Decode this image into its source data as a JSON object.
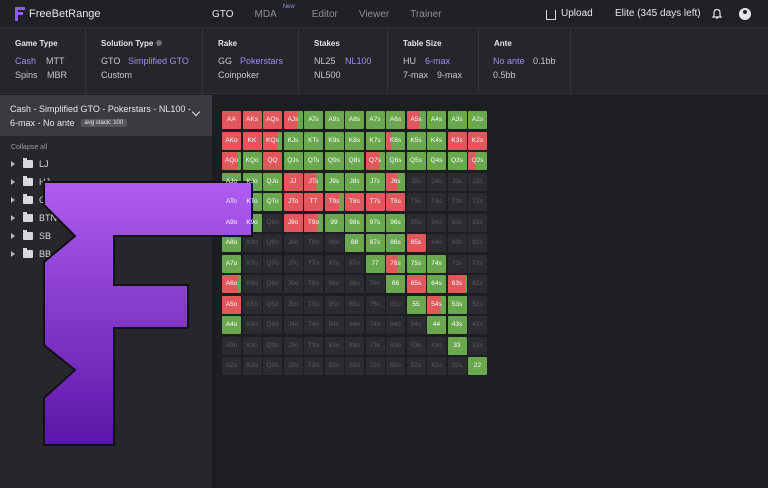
{
  "app": {
    "name": "FreeBetRange"
  },
  "nav": [
    {
      "label": "GTO",
      "active": true
    },
    {
      "label": "MDA",
      "badge": "New"
    },
    {
      "label": "Editor"
    },
    {
      "label": "Viewer"
    },
    {
      "label": "Trainer"
    }
  ],
  "header": {
    "upload_label": "Upload",
    "plan_label": "Elite (345 days left)"
  },
  "filters": {
    "game_type": {
      "label": "Game Type",
      "options": [
        "Cash",
        "MTT",
        "Spins",
        "MBR"
      ],
      "selected": "Cash"
    },
    "solution_type": {
      "label": "Solution Type",
      "options": [
        "GTO",
        "Simplified GTO",
        "Custom"
      ],
      "selected": "Simplified GTO"
    },
    "rake": {
      "label": "Rake",
      "options": [
        "GG",
        "Pokerstars",
        "Coinpoker"
      ],
      "selected": "Pokerstars"
    },
    "stakes": {
      "label": "Stakes",
      "options": [
        "NL25",
        "NL100",
        "NL500"
      ],
      "selected": "NL100"
    },
    "table_size": {
      "label": "Table Size",
      "options": [
        "HU",
        "6-max",
        "7-max",
        "9-max"
      ],
      "selected": "6-max"
    },
    "ante": {
      "label": "Ante",
      "options": [
        "No ante",
        "0.1bb",
        "0.5bb"
      ],
      "selected": "No ante"
    }
  },
  "sidebar": {
    "solution_line1": "Cash - Simplified GTO - Pokerstars - NL100 -",
    "solution_line2": "6-max - No ante",
    "stack_badge": "avg stack: 100",
    "collapse_label": "Collapse all",
    "positions": [
      "LJ",
      "HJ",
      "CO",
      "BTN",
      "SB",
      "BB"
    ]
  },
  "colors": {
    "raise": "#e2575c",
    "call": "#6aa84f",
    "fold": "#2b2c30",
    "accent": "#8b5cf6"
  },
  "range_grid": {
    "ranks": [
      "A",
      "K",
      "Q",
      "J",
      "T",
      "9",
      "8",
      "7",
      "6",
      "5",
      "4",
      "3",
      "2"
    ],
    "cells": [
      {
        "hand": "AA",
        "call": 0
      },
      {
        "hand": "AKs",
        "call": 0
      },
      {
        "hand": "AQs",
        "call": 0
      },
      {
        "hand": "AJs",
        "call": 0.3
      },
      {
        "hand": "ATs",
        "call": 1
      },
      {
        "hand": "A9s",
        "call": 1
      },
      {
        "hand": "A8s",
        "call": 1
      },
      {
        "hand": "A7s",
        "call": 1
      },
      {
        "hand": "A6s",
        "call": 1
      },
      {
        "hand": "A5s",
        "call": 0.35
      },
      {
        "hand": "A4s",
        "call": 1
      },
      {
        "hand": "A3s",
        "call": 1
      },
      {
        "hand": "A2s",
        "call": 1
      },
      {
        "hand": "AKo",
        "call": 0
      },
      {
        "hand": "KK",
        "call": 0
      },
      {
        "hand": "KQs",
        "call": 0.2
      },
      {
        "hand": "KJs",
        "call": 1
      },
      {
        "hand": "KTs",
        "call": 1
      },
      {
        "hand": "K9s",
        "call": 1
      },
      {
        "hand": "K8s",
        "call": 1
      },
      {
        "hand": "K7s",
        "call": 1
      },
      {
        "hand": "K6s",
        "call": 0.7
      },
      {
        "hand": "K5s",
        "call": 1
      },
      {
        "hand": "K4s",
        "call": 1
      },
      {
        "hand": "K3s",
        "call": 0
      },
      {
        "hand": "K2s",
        "call": 0
      },
      {
        "hand": "AQo",
        "call": 0.15
      },
      {
        "hand": "KQo",
        "call": 1
      },
      {
        "hand": "QQ",
        "call": 0
      },
      {
        "hand": "QJs",
        "call": 1
      },
      {
        "hand": "QTs",
        "call": 1
      },
      {
        "hand": "Q9s",
        "call": 1
      },
      {
        "hand": "Q8s",
        "call": 1
      },
      {
        "hand": "Q7s",
        "call": 0.3
      },
      {
        "hand": "Q6s",
        "call": 1
      },
      {
        "hand": "Q5s",
        "call": 1
      },
      {
        "hand": "Q4s",
        "call": 1
      },
      {
        "hand": "Q3s",
        "call": 1
      },
      {
        "hand": "Q2s",
        "call": 0.6
      },
      {
        "hand": "AJo",
        "call": 1
      },
      {
        "hand": "KJo",
        "call": 1
      },
      {
        "hand": "QJo",
        "call": 1
      },
      {
        "hand": "JJ",
        "call": 0
      },
      {
        "hand": "JTs",
        "call": 0.35
      },
      {
        "hand": "J9s",
        "call": 1
      },
      {
        "hand": "J8s",
        "call": 1
      },
      {
        "hand": "J7s",
        "call": 1
      },
      {
        "hand": "J6s",
        "call": 0.4
      },
      {
        "hand": "J5s",
        "call": -1
      },
      {
        "hand": "J4s",
        "call": -1
      },
      {
        "hand": "J3s",
        "call": -1
      },
      {
        "hand": "J2s",
        "call": -1
      },
      {
        "hand": "ATo",
        "call": 1
      },
      {
        "hand": "KTo",
        "call": 1
      },
      {
        "hand": "QTo",
        "call": 1
      },
      {
        "hand": "JTo",
        "call": 0
      },
      {
        "hand": "TT",
        "call": 0
      },
      {
        "hand": "T9s",
        "call": 0.25
      },
      {
        "hand": "T8s",
        "call": 0
      },
      {
        "hand": "T7s",
        "call": 0
      },
      {
        "hand": "T6s",
        "call": 0
      },
      {
        "hand": "T5s",
        "call": -1
      },
      {
        "hand": "T4s",
        "call": -1
      },
      {
        "hand": "T3s",
        "call": -1
      },
      {
        "hand": "T2s",
        "call": -1
      },
      {
        "hand": "A9o",
        "call": 1
      },
      {
        "hand": "K9o",
        "call": 1
      },
      {
        "hand": "Q9o",
        "call": -1
      },
      {
        "hand": "J9o",
        "call": 0
      },
      {
        "hand": "T9o",
        "call": 0.3
      },
      {
        "hand": "99",
        "call": 1
      },
      {
        "hand": "98s",
        "call": 1
      },
      {
        "hand": "97s",
        "call": 1
      },
      {
        "hand": "96s",
        "call": 1
      },
      {
        "hand": "95s",
        "call": -1
      },
      {
        "hand": "94s",
        "call": -1
      },
      {
        "hand": "93s",
        "call": -1
      },
      {
        "hand": "92s",
        "call": -1
      },
      {
        "hand": "A8o",
        "call": 1
      },
      {
        "hand": "K8o",
        "call": -1
      },
      {
        "hand": "Q8o",
        "call": -1
      },
      {
        "hand": "J8o",
        "call": -1
      },
      {
        "hand": "T8o",
        "call": -1
      },
      {
        "hand": "98o",
        "call": -1
      },
      {
        "hand": "88",
        "call": 1
      },
      {
        "hand": "87s",
        "call": 1
      },
      {
        "hand": "86s",
        "call": 1
      },
      {
        "hand": "85s",
        "call": 0
      },
      {
        "hand": "84s",
        "call": -1
      },
      {
        "hand": "83s",
        "call": -1
      },
      {
        "hand": "82s",
        "call": -1
      },
      {
        "hand": "A7o",
        "call": 1
      },
      {
        "hand": "K7o",
        "call": -1
      },
      {
        "hand": "Q7o",
        "call": -1
      },
      {
        "hand": "J7o",
        "call": -1
      },
      {
        "hand": "T7o",
        "call": -1
      },
      {
        "hand": "97o",
        "call": -1
      },
      {
        "hand": "87o",
        "call": -1
      },
      {
        "hand": "77",
        "call": 1
      },
      {
        "hand": "76s",
        "call": 0.4
      },
      {
        "hand": "75s",
        "call": 1
      },
      {
        "hand": "74s",
        "call": 1
      },
      {
        "hand": "73s",
        "call": -1
      },
      {
        "hand": "72s",
        "call": -1
      },
      {
        "hand": "A6o",
        "call": 0.15
      },
      {
        "hand": "K6o",
        "call": -1
      },
      {
        "hand": "Q6o",
        "call": -1
      },
      {
        "hand": "J6o",
        "call": -1
      },
      {
        "hand": "T6o",
        "call": -1
      },
      {
        "hand": "96o",
        "call": -1
      },
      {
        "hand": "86o",
        "call": -1
      },
      {
        "hand": "76o",
        "call": -1
      },
      {
        "hand": "66",
        "call": 1
      },
      {
        "hand": "65s",
        "call": 0
      },
      {
        "hand": "64s",
        "call": 1
      },
      {
        "hand": "63s",
        "call": 0.1
      },
      {
        "hand": "62s",
        "call": -1
      },
      {
        "hand": "A5o",
        "call": 0
      },
      {
        "hand": "K5o",
        "call": -1
      },
      {
        "hand": "Q5o",
        "call": -1
      },
      {
        "hand": "J5o",
        "call": -1
      },
      {
        "hand": "T5o",
        "call": -1
      },
      {
        "hand": "95o",
        "call": -1
      },
      {
        "hand": "85o",
        "call": -1
      },
      {
        "hand": "75o",
        "call": -1
      },
      {
        "hand": "65o",
        "call": -1
      },
      {
        "hand": "55",
        "call": 1
      },
      {
        "hand": "54s",
        "call": 0.3
      },
      {
        "hand": "53s",
        "call": 1
      },
      {
        "hand": "52s",
        "call": -1
      },
      {
        "hand": "A4o",
        "call": 1
      },
      {
        "hand": "K4o",
        "call": -1
      },
      {
        "hand": "Q4o",
        "call": -1
      },
      {
        "hand": "J4o",
        "call": -1
      },
      {
        "hand": "T4o",
        "call": -1
      },
      {
        "hand": "94o",
        "call": -1
      },
      {
        "hand": "84o",
        "call": -1
      },
      {
        "hand": "74o",
        "call": -1
      },
      {
        "hand": "64o",
        "call": -1
      },
      {
        "hand": "54o",
        "call": -1
      },
      {
        "hand": "44",
        "call": 1
      },
      {
        "hand": "43s",
        "call": 1
      },
      {
        "hand": "42s",
        "call": -1
      },
      {
        "hand": "A3o",
        "call": -1
      },
      {
        "hand": "K3o",
        "call": -1
      },
      {
        "hand": "Q3o",
        "call": -1
      },
      {
        "hand": "J3o",
        "call": -1
      },
      {
        "hand": "T3o",
        "call": -1
      },
      {
        "hand": "93o",
        "call": -1
      },
      {
        "hand": "83o",
        "call": -1
      },
      {
        "hand": "73o",
        "call": -1
      },
      {
        "hand": "63o",
        "call": -1
      },
      {
        "hand": "53o",
        "call": -1
      },
      {
        "hand": "43o",
        "call": -1
      },
      {
        "hand": "33",
        "call": 1
      },
      {
        "hand": "32s",
        "call": -1
      },
      {
        "hand": "A2o",
        "call": -1
      },
      {
        "hand": "K2o",
        "call": -1
      },
      {
        "hand": "Q2o",
        "call": -1
      },
      {
        "hand": "J2o",
        "call": -1
      },
      {
        "hand": "T2o",
        "call": -1
      },
      {
        "hand": "92o",
        "call": -1
      },
      {
        "hand": "82o",
        "call": -1
      },
      {
        "hand": "72o",
        "call": -1
      },
      {
        "hand": "62o",
        "call": -1
      },
      {
        "hand": "52o",
        "call": -1
      },
      {
        "hand": "42o",
        "call": -1
      },
      {
        "hand": "32o",
        "call": -1
      },
      {
        "hand": "22",
        "call": 1
      }
    ]
  }
}
